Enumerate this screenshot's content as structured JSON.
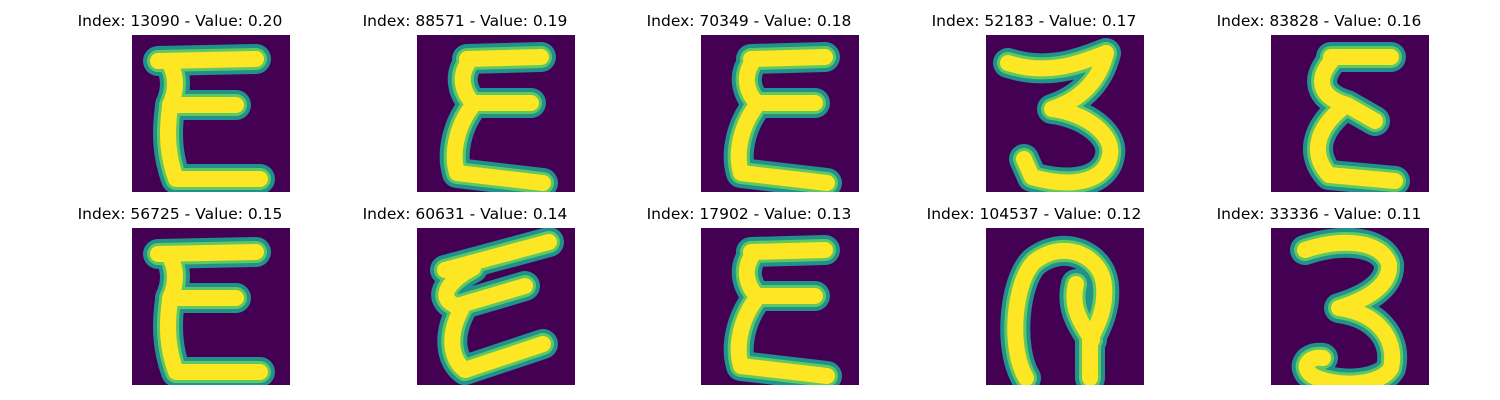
{
  "colors": {
    "background": "#440154",
    "stroke_core": "#fde725",
    "stroke_mid": "#5ec962",
    "stroke_edge": "#21918c"
  },
  "panels": [
    {
      "title": "Index: 13090 - Value: 0.20",
      "glyph": "epsilon-square"
    },
    {
      "title": "Index: 88571 - Value: 0.19",
      "glyph": "epsilon-zigzag"
    },
    {
      "title": "Index: 70349 - Value: 0.18",
      "glyph": "epsilon-zigzag"
    },
    {
      "title": "Index: 52183 - Value: 0.17",
      "glyph": "three-open"
    },
    {
      "title": "Index: 83828 - Value: 0.16",
      "glyph": "epsilon-rounded"
    },
    {
      "title": "Index: 56725 - Value: 0.15",
      "glyph": "epsilon-square"
    },
    {
      "title": "Index: 60631 - Value: 0.14",
      "glyph": "epsilon-slanted"
    },
    {
      "title": "Index: 17902 - Value: 0.13",
      "glyph": "epsilon-zigzag"
    },
    {
      "title": "Index: 104537 - Value: 0.12",
      "glyph": "loop-curl"
    },
    {
      "title": "Index: 33336 - Value: 0.11",
      "glyph": "three-round"
    }
  ]
}
